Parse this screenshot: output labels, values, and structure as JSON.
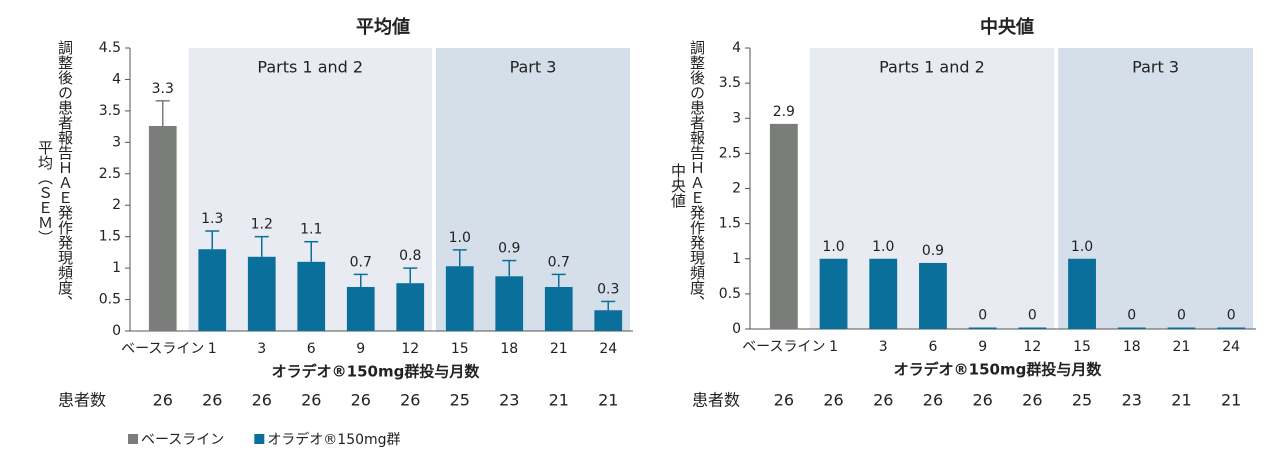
{
  "chart_data": [
    {
      "type": "bar",
      "title": "平均値",
      "ylabel": [
        "調整後の患者報告ＨＡＥ発作発現頻度、",
        "平均（ＳＥＭ）"
      ],
      "xlabel": "オラデオ®150mg群投与月数",
      "categories": [
        "ベースライン",
        "1",
        "3",
        "6",
        "9",
        "12",
        "15",
        "18",
        "21",
        "24"
      ],
      "series": [
        {
          "name": "ベースライン",
          "color": "#7b7d7a",
          "values": [
            3.26,
            null,
            null,
            null,
            null,
            null,
            null,
            null,
            null,
            null
          ],
          "errors": [
            0.4,
            null,
            null,
            null,
            null,
            null,
            null,
            null,
            null,
            null
          ],
          "value_labels": [
            "3.3",
            null,
            null,
            null,
            null,
            null,
            null,
            null,
            null,
            null
          ]
        },
        {
          "name": "オラデオ®150mg群",
          "color": "#0a6f9b",
          "values": [
            null,
            1.3,
            1.18,
            1.1,
            0.7,
            0.76,
            1.03,
            0.87,
            0.7,
            0.33
          ],
          "errors": [
            null,
            0.29,
            0.32,
            0.32,
            0.2,
            0.24,
            0.26,
            0.25,
            0.2,
            0.14
          ],
          "value_labels": [
            null,
            "1.3",
            "1.2",
            "1.1",
            "0.7",
            "0.8",
            "1.0",
            "0.9",
            "0.7",
            "0.3"
          ]
        }
      ],
      "ylim": [
        0,
        4.5
      ],
      "yticks": [
        0,
        0.5,
        1,
        1.5,
        2,
        2.5,
        3,
        3.5,
        4,
        4.5
      ],
      "regions": [
        {
          "label": "Parts 1 and 2",
          "from": "1",
          "to": "12",
          "color": "#e8ebf2"
        },
        {
          "label": "Part 3",
          "from": "15",
          "to": "24",
          "color": "#d5dfea"
        }
      ],
      "patients": {
        "label": "患者数",
        "counts": [
          26,
          26,
          26,
          26,
          26,
          26,
          25,
          23,
          21,
          21
        ]
      },
      "legend": "bottom-left"
    },
    {
      "type": "bar",
      "title": "中央値",
      "ylabel": [
        "調整後の患者報告ＨＡＥ発作発現頻度、",
        "中央値"
      ],
      "xlabel": "オラデオ®150mg群投与月数",
      "categories": [
        "ベースライン",
        "1",
        "3",
        "6",
        "9",
        "12",
        "15",
        "18",
        "21",
        "24"
      ],
      "values": [
        2.92,
        1.0,
        1.0,
        0.94,
        0,
        0,
        1.0,
        0,
        0,
        0
      ],
      "colors": [
        "#7b7d7a",
        "#0a6f9b",
        "#0a6f9b",
        "#0a6f9b",
        "#0a6f9b",
        "#0a6f9b",
        "#0a6f9b",
        "#0a6f9b",
        "#0a6f9b",
        "#0a6f9b"
      ],
      "value_labels": [
        "2.9",
        "1.0",
        "1.0",
        "0.9",
        "0",
        "0",
        "1.0",
        "0",
        "0",
        "0"
      ],
      "ylim": [
        0,
        4
      ],
      "yticks": [
        0,
        0.5,
        1,
        1.5,
        2,
        2.5,
        3,
        3.5,
        4
      ],
      "regions": [
        {
          "label": "Parts 1 and 2",
          "from": "1",
          "to": "12",
          "color": "#e8ebf2"
        },
        {
          "label": "Part 3",
          "from": "15",
          "to": "24",
          "color": "#d5dfea"
        }
      ],
      "patients": {
        "label": "患者数",
        "counts": [
          26,
          26,
          26,
          26,
          26,
          26,
          25,
          23,
          21,
          21
        ]
      }
    }
  ]
}
